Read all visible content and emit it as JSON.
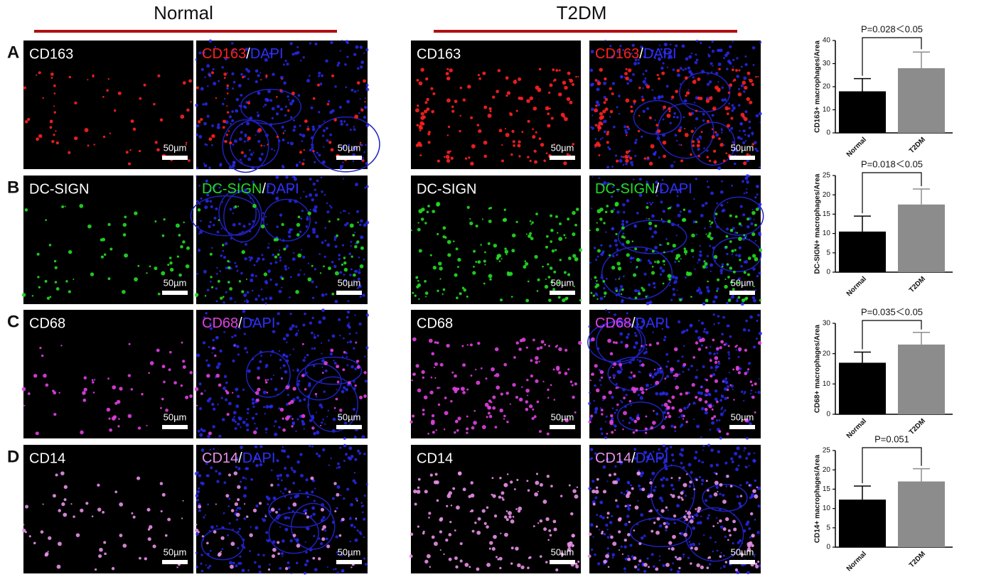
{
  "column_titles": [
    "Normal",
    "T2DM"
  ],
  "counterstain": "DAPI",
  "separator": "/",
  "scale_bar": "50µm",
  "rows": [
    {
      "letter": "A",
      "marker": "CD163",
      "color": "#ff2020"
    },
    {
      "letter": "B",
      "marker": "DC-SIGN",
      "color": "#22dd22"
    },
    {
      "letter": "C",
      "marker": "CD68",
      "color": "#e040e0"
    },
    {
      "letter": "D",
      "marker": "CD14",
      "color": "#e890e8"
    }
  ],
  "chart_data": [
    {
      "type": "bar",
      "ylabel": "CD163+ macrophages/Area",
      "categories": [
        "Normal",
        "T2DM"
      ],
      "values": [
        18,
        28
      ],
      "errors": [
        5.5,
        7
      ],
      "colors": [
        "#000000",
        "#8c8c8c"
      ],
      "ylim": [
        0,
        40
      ],
      "yticks": [
        0,
        10,
        20,
        30,
        40
      ],
      "annotation": "P=0.028＜0.05"
    },
    {
      "type": "bar",
      "ylabel": "DC-SIGN+ macrophages/Area",
      "categories": [
        "Normal",
        "T2DM"
      ],
      "values": [
        10.5,
        17.5
      ],
      "errors": [
        4,
        4
      ],
      "colors": [
        "#000000",
        "#8c8c8c"
      ],
      "ylim": [
        0,
        25
      ],
      "yticks": [
        0,
        5,
        10,
        15,
        20,
        25
      ],
      "annotation": "P=0.018＜0.05"
    },
    {
      "type": "bar",
      "ylabel": "CD68+ macrophages/Area",
      "categories": [
        "Normal",
        "T2DM"
      ],
      "values": [
        17,
        23
      ],
      "errors": [
        3.5,
        4
      ],
      "colors": [
        "#000000",
        "#8c8c8c"
      ],
      "ylim": [
        0,
        30
      ],
      "yticks": [
        0,
        10,
        20,
        30
      ],
      "annotation": "P=0.035＜0.05"
    },
    {
      "type": "bar",
      "ylabel": "CD14+ macrophages/Area",
      "categories": [
        "Normal",
        "T2DM"
      ],
      "values": [
        12.3,
        17
      ],
      "errors": [
        3.5,
        3.3
      ],
      "colors": [
        "#000000",
        "#8c8c8c"
      ],
      "ylim": [
        0,
        25
      ],
      "yticks": [
        0,
        5,
        10,
        15,
        20,
        25
      ],
      "annotation": "P=0.051"
    }
  ]
}
